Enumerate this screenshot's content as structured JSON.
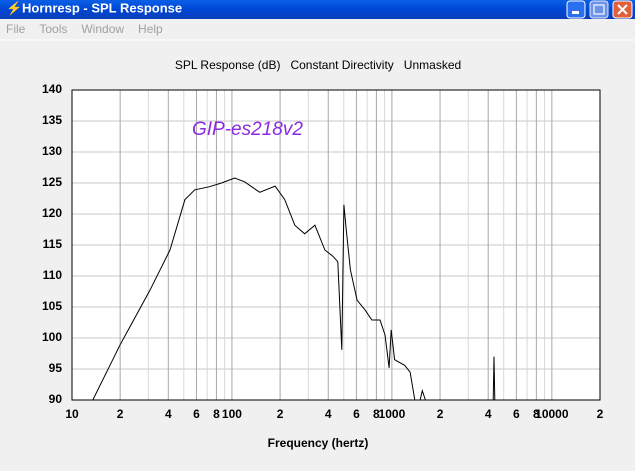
{
  "window": {
    "title": "Hornresp - SPL Response",
    "menu": [
      "File",
      "Tools",
      "Window",
      "Help"
    ]
  },
  "chart_data": {
    "type": "line",
    "title": "SPL Response (dB)   Constant Directivity   Unmasked",
    "xlabel": "Frequency (hertz)",
    "annotation": "GIP-es218v2",
    "xscale": "log",
    "grid": true,
    "xlim": [
      10,
      20000
    ],
    "ylim": [
      90,
      140
    ],
    "xticks": [
      {
        "value": 10,
        "label": "10"
      },
      {
        "value": 20,
        "label": "2"
      },
      {
        "value": 40,
        "label": "4"
      },
      {
        "value": 60,
        "label": "6"
      },
      {
        "value": 80,
        "label": "8"
      },
      100,
      {
        "value": 200,
        "label": "2"
      },
      {
        "value": 400,
        "label": "4"
      },
      {
        "value": 600,
        "label": "6"
      },
      {
        "value": 800,
        "label": "8"
      },
      1000,
      {
        "value": 2000,
        "label": "2"
      },
      {
        "value": 4000,
        "label": "4"
      },
      {
        "value": 6000,
        "label": "6"
      },
      {
        "value": 8000,
        "label": "8"
      },
      10000,
      {
        "value": 20000,
        "label": "2"
      }
    ],
    "x_minor_ticks": [
      30,
      50,
      70,
      90,
      300,
      500,
      700,
      900,
      3000,
      5000,
      7000,
      9000
    ],
    "yticks": [
      90,
      95,
      100,
      105,
      110,
      115,
      120,
      125,
      130,
      135,
      140
    ],
    "series": [
      {
        "color": "#000000",
        "x": [
          13.5,
          20,
          30.7,
          41,
          50.8,
          58.6,
          72.5,
          86,
          104,
          120,
          149,
          186,
          214,
          247,
          285,
          330,
          381,
          427,
          459,
          486,
          501,
          517,
          550,
          606,
          680,
          750,
          842,
          906,
          960,
          990,
          1040,
          1200,
          1300,
          1390,
          null,
          1500,
          1550,
          1620,
          null,
          4300,
          4350,
          4400
        ],
        "values": [
          90,
          98.9,
          107.7,
          114.2,
          122.3,
          123.9,
          124.4,
          125,
          125.8,
          125.2,
          123.5,
          124.5,
          122.3,
          118.2,
          116.8,
          118.2,
          114.2,
          113.2,
          112.3,
          98.1,
          121.5,
          117.7,
          111,
          106.1,
          104.5,
          102.9,
          102.9,
          100.5,
          95.2,
          101.3,
          96.5,
          95.6,
          94.5,
          90,
          null,
          90,
          91.5,
          90,
          null,
          90,
          97,
          90
        ]
      }
    ]
  }
}
